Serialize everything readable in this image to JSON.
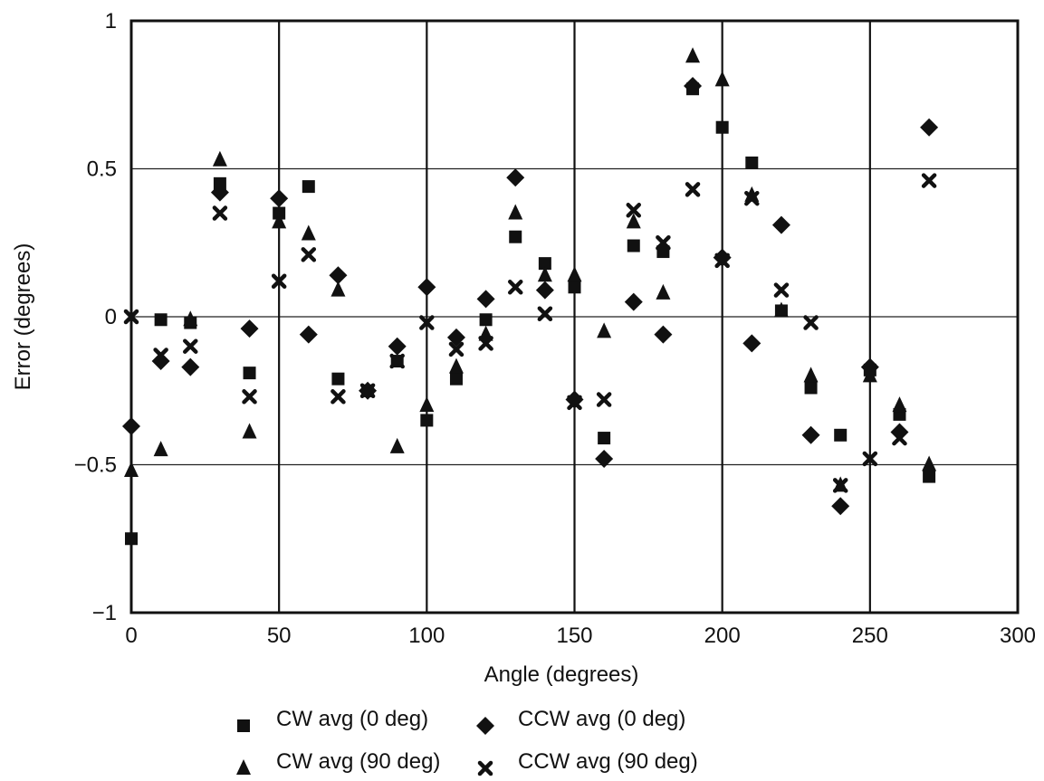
{
  "chart_data": {
    "type": "scatter",
    "xlabel": "Angle (degrees)",
    "ylabel": "Error (degrees)",
    "xlim": [
      0,
      300
    ],
    "ylim": [
      -1,
      1
    ],
    "x_ticks": [
      0,
      50,
      100,
      150,
      200,
      250,
      300
    ],
    "x_tick_labels": [
      "0",
      "50",
      "100",
      "150",
      "200",
      "250",
      "300"
    ],
    "y_ticks": [
      -1,
      -0.5,
      0,
      0.5,
      1
    ],
    "y_tick_labels": [
      "−1",
      "−0.5",
      "0",
      "0.5",
      "1"
    ],
    "grid": true,
    "legend_position": "bottom",
    "x": [
      0,
      10,
      20,
      30,
      40,
      50,
      60,
      70,
      80,
      90,
      100,
      110,
      120,
      130,
      140,
      150,
      160,
      170,
      180,
      190,
      200,
      210,
      220,
      230,
      240,
      250,
      260,
      270
    ],
    "series": [
      {
        "name": "CW avg (0 deg)",
        "marker": "square",
        "values": [
          -0.75,
          -0.01,
          -0.02,
          0.45,
          -0.19,
          0.35,
          0.44,
          -0.21,
          -0.25,
          -0.15,
          -0.35,
          -0.21,
          -0.01,
          0.27,
          0.18,
          0.1,
          -0.41,
          0.24,
          0.22,
          0.77,
          0.64,
          0.52,
          0.02,
          -0.24,
          -0.4,
          -0.18,
          -0.33,
          -0.54
        ]
      },
      {
        "name": "CCW avg (0 deg)",
        "marker": "diamond",
        "values": [
          -0.37,
          -0.15,
          -0.17,
          0.42,
          -0.04,
          0.4,
          -0.06,
          0.14,
          -0.25,
          -0.1,
          0.1,
          -0.07,
          0.06,
          0.47,
          0.09,
          -0.28,
          -0.48,
          0.05,
          -0.06,
          0.78,
          0.2,
          -0.09,
          0.31,
          -0.4,
          -0.64,
          -0.17,
          -0.39,
          0.64
        ]
      },
      {
        "name": "CW avg (90 deg)",
        "marker": "triangle",
        "values": [
          -0.52,
          -0.45,
          -0.01,
          0.53,
          -0.39,
          0.32,
          0.28,
          0.09,
          -0.25,
          -0.44,
          -0.3,
          -0.17,
          -0.06,
          0.35,
          0.14,
          0.14,
          -0.05,
          0.32,
          0.08,
          0.88,
          0.8,
          0.41,
          0.02,
          -0.2,
          -0.57,
          -0.2,
          -0.3,
          -0.5
        ]
      },
      {
        "name": "CCW avg (90 deg)",
        "marker": "x",
        "values": [
          0.0,
          -0.13,
          -0.1,
          0.35,
          -0.27,
          0.12,
          0.21,
          -0.27,
          -0.25,
          -0.15,
          -0.02,
          -0.11,
          -0.09,
          0.1,
          0.01,
          -0.29,
          -0.28,
          0.36,
          0.25,
          0.43,
          0.19,
          0.4,
          0.09,
          -0.02,
          -0.57,
          -0.48,
          -0.41,
          0.46
        ]
      }
    ],
    "legend": [
      {
        "label": "CW avg (0 deg)",
        "marker": "square"
      },
      {
        "label": "CCW avg (0 deg)",
        "marker": "diamond"
      },
      {
        "label": "CW avg (90 deg)",
        "marker": "triangle"
      },
      {
        "label": "CCW avg (90 deg)",
        "marker": "x"
      }
    ],
    "colors": {
      "marker": "#111111",
      "grid": "#222222",
      "background": "#ffffff"
    }
  }
}
